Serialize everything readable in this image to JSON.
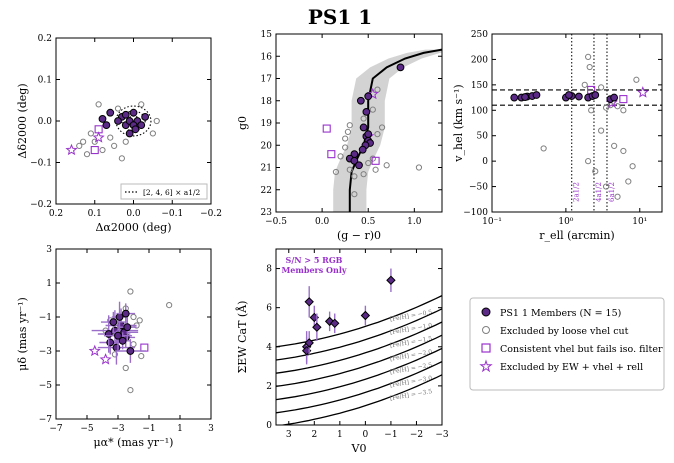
{
  "figure_title": "PS1 1",
  "colors": {
    "member_face": "#5b2a86",
    "member_edge": "#000000",
    "purple": "#9932cc",
    "gray": "#808080",
    "band": "#d3d3d3"
  },
  "chart_data": [
    {
      "id": "spatial",
      "type": "scatter",
      "xlabel": "Δα2000 (deg)",
      "ylabel": "Δδ2000 (deg)",
      "xlim": [
        0.2,
        -0.2
      ],
      "ylim": [
        -0.2,
        0.2
      ],
      "xticks": [
        "0.2",
        "0.1",
        "0.0",
        "−0.1",
        "−0.2"
      ],
      "yticks": [
        "0.2",
        "0.1",
        "0.0",
        "−0.1",
        "−0.2"
      ],
      "xtick_values": [
        0.2,
        0.1,
        0.0,
        -0.1,
        -0.2
      ],
      "ytick_values": [
        0.2,
        0.1,
        0.0,
        -0.1,
        -0.2
      ],
      "legend": "[2, 4, 6] × a1/2",
      "ellipse_multiples": [
        2,
        4,
        6
      ],
      "ellipse_half_axes_deg": [
        0.0075,
        0.006
      ],
      "members": [
        [
          0.03,
          0.01
        ],
        [
          0.02,
          -0.01
        ],
        [
          0.01,
          0.0
        ],
        [
          0.0,
          0.02
        ],
        [
          -0.01,
          0.0
        ],
        [
          0.0,
          -0.01
        ],
        [
          -0.02,
          -0.01
        ],
        [
          0.04,
          0.0
        ],
        [
          0.07,
          -0.01
        ],
        [
          0.06,
          0.02
        ],
        [
          0.01,
          -0.03
        ],
        [
          -0.03,
          0.01
        ],
        [
          0.02,
          0.015
        ],
        [
          0.08,
          0.005
        ],
        [
          -0.005,
          -0.02
        ]
      ],
      "excluded_vhel": [
        [
          0.1,
          -0.05
        ],
        [
          0.08,
          -0.07
        ],
        [
          0.12,
          -0.08
        ],
        [
          0.05,
          -0.06
        ],
        [
          0.02,
          -0.05
        ],
        [
          -0.05,
          -0.03
        ],
        [
          0.11,
          -0.03
        ],
        [
          0.04,
          0.03
        ],
        [
          -0.02,
          0.04
        ],
        [
          0.09,
          0.04
        ],
        [
          0.13,
          -0.05
        ],
        [
          0.14,
          -0.06
        ],
        [
          0.03,
          -0.09
        ],
        [
          -0.06,
          0.0
        ],
        [
          0.06,
          -0.04
        ]
      ],
      "iso_filter_fail": [
        [
          0.09,
          -0.02
        ],
        [
          0.1,
          -0.07
        ]
      ],
      "excluded_ew": [
        [
          0.09,
          -0.04
        ],
        [
          0.16,
          -0.07
        ]
      ]
    },
    {
      "id": "cmd",
      "type": "scatter",
      "xlabel": "(g − r)0",
      "ylabel": "g0",
      "xlim": [
        -0.5,
        1.3
      ],
      "ylim": [
        23,
        15
      ],
      "xticks": [
        "−0.5",
        "0.0",
        "0.5",
        "1.0"
      ],
      "yticks": [
        "15",
        "16",
        "17",
        "18",
        "19",
        "20",
        "21",
        "22",
        "23"
      ],
      "xtick_values": [
        -0.5,
        0.0,
        0.5,
        1.0
      ],
      "ytick_values": [
        15,
        16,
        17,
        18,
        19,
        20,
        21,
        22,
        23
      ],
      "isochrone": [
        [
          0.3,
          23.0
        ],
        [
          0.3,
          22.0
        ],
        [
          0.32,
          21.2
        ],
        [
          0.38,
          20.6
        ],
        [
          0.45,
          20.0
        ],
        [
          0.5,
          19.2
        ],
        [
          0.5,
          18.0
        ],
        [
          0.55,
          17.0
        ],
        [
          0.7,
          16.5
        ],
        [
          0.9,
          16.1
        ],
        [
          1.1,
          15.85
        ],
        [
          1.3,
          15.7
        ]
      ],
      "band_halfwidth": 0.18,
      "members": [
        [
          0.42,
          18.0
        ],
        [
          0.5,
          17.8
        ],
        [
          0.45,
          19.2
        ],
        [
          0.48,
          19.6
        ],
        [
          0.5,
          19.5
        ],
        [
          0.35,
          20.4
        ],
        [
          0.3,
          20.6
        ],
        [
          0.35,
          20.7
        ],
        [
          0.4,
          20.9
        ],
        [
          0.5,
          19.8
        ],
        [
          0.48,
          18.5
        ],
        [
          0.52,
          19.9
        ],
        [
          0.85,
          16.5
        ],
        [
          0.47,
          20.0
        ],
        [
          0.44,
          20.2
        ]
      ],
      "excluded_vhel": [
        [
          0.2,
          20.5
        ],
        [
          0.25,
          19.7
        ],
        [
          0.6,
          19.5
        ],
        [
          0.55,
          20.6
        ],
        [
          0.3,
          21.1
        ],
        [
          0.15,
          21.2
        ],
        [
          0.35,
          21.4
        ],
        [
          0.45,
          21.3
        ],
        [
          0.7,
          20.9
        ],
        [
          0.65,
          19.2
        ],
        [
          0.3,
          19.1
        ],
        [
          0.25,
          20.1
        ],
        [
          0.55,
          18.4
        ],
        [
          0.6,
          17.5
        ],
        [
          0.35,
          22.2
        ],
        [
          1.05,
          21.0
        ],
        [
          0.45,
          18.8
        ],
        [
          0.5,
          20.8
        ],
        [
          0.28,
          19.4
        ],
        [
          0.58,
          21.1
        ]
      ],
      "iso_filter_fail": [
        [
          0.05,
          19.25
        ],
        [
          0.1,
          20.4
        ],
        [
          0.58,
          20.7
        ]
      ],
      "excluded_ew": [
        [
          0.55,
          17.7
        ],
        [
          0.5,
          19.6
        ]
      ]
    },
    {
      "id": "vhel_r",
      "type": "scatter",
      "xscale": "log",
      "xlabel": "r_ell (arcmin)",
      "ylabel": "v_hel (km s⁻¹)",
      "xlim": [
        0.1,
        20
      ],
      "ylim": [
        -100,
        250
      ],
      "xticks": [
        "10⁻¹",
        "10⁰",
        "10¹"
      ],
      "yticks": [
        "250",
        "200",
        "150",
        "100",
        "50",
        "0",
        "−50",
        "−100"
      ],
      "xtick_values": [
        0.1,
        1.0,
        10.0
      ],
      "ytick_values": [
        250,
        200,
        150,
        100,
        50,
        0,
        -50,
        -100
      ],
      "hlines_v": [
        140,
        110
      ],
      "vlines_r": [
        1.2,
        2.4,
        3.6
      ],
      "vline_labels": [
        "2a1/2",
        "4a1/2",
        "6a1/2"
      ],
      "members": [
        [
          0.2,
          125
        ],
        [
          0.25,
          125
        ],
        [
          0.3,
          127
        ],
        [
          0.35,
          128
        ],
        [
          0.4,
          130
        ],
        [
          1.0,
          125
        ],
        [
          1.2,
          128
        ],
        [
          1.5,
          127
        ],
        [
          2.0,
          125
        ],
        [
          2.3,
          128
        ],
        [
          2.5,
          130
        ],
        [
          4.0,
          122
        ],
        [
          4.5,
          125
        ],
        [
          1.1,
          130
        ],
        [
          0.28,
          126
        ]
      ],
      "excluded_vhel": [
        [
          2.0,
          205
        ],
        [
          2.1,
          185
        ],
        [
          1.8,
          150
        ],
        [
          3.0,
          145
        ],
        [
          2.2,
          100
        ],
        [
          3.5,
          105
        ],
        [
          4.0,
          110
        ],
        [
          5.0,
          108
        ],
        [
          6.0,
          100
        ],
        [
          3.0,
          60
        ],
        [
          4.5,
          30
        ],
        [
          6.0,
          20
        ],
        [
          2.0,
          0
        ],
        [
          2.5,
          -20
        ],
        [
          3.5,
          -50
        ],
        [
          7.0,
          -40
        ],
        [
          8.0,
          -10
        ],
        [
          5.0,
          -70
        ],
        [
          0.5,
          25
        ],
        [
          9.0,
          160
        ]
      ],
      "iso_filter_fail": [
        [
          2.2,
          140
        ],
        [
          6.0,
          122
        ]
      ],
      "excluded_ew": [
        [
          4.2,
          115
        ],
        [
          11.0,
          135
        ]
      ]
    },
    {
      "id": "proper_motion",
      "type": "scatter",
      "xlabel": "μα* (mas yr⁻¹)",
      "ylabel": "μδ (mas yr⁻¹)",
      "xlim": [
        -7,
        3
      ],
      "ylim": [
        -7,
        3
      ],
      "xticks": [
        "−7",
        "−5",
        "−3",
        "−1",
        "1",
        "3"
      ],
      "yticks": [
        "3",
        "1",
        "−1",
        "−3",
        "−5",
        "−7"
      ],
      "xtick_values": [
        -7,
        -5,
        -3,
        -1,
        1,
        3
      ],
      "ytick_values": [
        3,
        1,
        -1,
        -3,
        -5,
        -7
      ],
      "members": [
        [
          -3,
          -2
        ],
        [
          -2.8,
          -1.5
        ],
        [
          -2.5,
          -2.2
        ],
        [
          -3.2,
          -1.8
        ],
        [
          -3.5,
          -2.5
        ],
        [
          -2.9,
          -1.0
        ],
        [
          -2.6,
          -1.9
        ],
        [
          -3.1,
          -2.8
        ],
        [
          -2.4,
          -1.6
        ],
        [
          -3.3,
          -1.3
        ],
        [
          -2.7,
          -2.4
        ],
        [
          -2.2,
          -3.0
        ],
        [
          -3.6,
          -2.0
        ],
        [
          -2.5,
          -0.8
        ],
        [
          -3.0,
          -2.1
        ]
      ],
      "member_errors": [
        [
          0.8,
          0.8
        ],
        [
          1.0,
          1.0
        ],
        [
          0.6,
          0.6
        ],
        [
          1.5,
          1.2
        ],
        [
          0.7,
          0.7
        ],
        [
          0.5,
          0.9
        ],
        [
          0.9,
          0.5
        ],
        [
          1.2,
          1.0
        ],
        [
          0.6,
          0.8
        ],
        [
          0.8,
          0.6
        ],
        [
          0.5,
          0.5
        ],
        [
          1.0,
          0.7
        ],
        [
          0.7,
          1.1
        ],
        [
          0.6,
          0.6
        ],
        [
          0.9,
          0.9
        ]
      ],
      "excluded_vhel": [
        [
          -2.0,
          -1.0
        ],
        [
          -2.5,
          -0.5
        ],
        [
          -1.8,
          -1.5
        ],
        [
          -3.5,
          -1.2
        ],
        [
          -2.2,
          0.5
        ],
        [
          -2.7,
          -2.0
        ],
        [
          -3.2,
          -3.2
        ],
        [
          -2.0,
          -2.6
        ],
        [
          -1.5,
          -3.3
        ],
        [
          -2.5,
          -4.0
        ],
        [
          -2.2,
          -5.3
        ],
        [
          -1.6,
          -1.2
        ],
        [
          0.3,
          -0.3
        ],
        [
          -3.8,
          -1.8
        ]
      ],
      "iso_filter_fail": [
        [
          -1.3,
          -2.8
        ]
      ],
      "excluded_ew": [
        [
          -4.5,
          -3.0
        ],
        [
          -3.8,
          -3.5
        ]
      ]
    },
    {
      "id": "ew_v",
      "type": "scatter",
      "xlabel": "V0",
      "ylabel": "ΣEW CaT (Å)",
      "xlim": [
        3.5,
        -3
      ],
      "ylim": [
        0,
        9
      ],
      "xticks": [
        "3",
        "2",
        "1",
        "0",
        "−1",
        "−2",
        "−3"
      ],
      "yticks": [
        "8",
        "6",
        "4",
        "2",
        "0"
      ],
      "xtick_values": [
        3,
        2,
        1,
        0,
        -1,
        -2,
        -3
      ],
      "ytick_values": [
        8,
        6,
        4,
        2,
        0
      ],
      "annotation": [
        "S/N > 5 RGB",
        "Members Only"
      ],
      "feh_labels": [
        "[Fe/H] = −0.5",
        "[Fe/H] = −1.0",
        "[Fe/H] = −1.5",
        "[Fe/H] = −2.0",
        "[Fe/H] = −2.5",
        "[Fe/H] = −3.0",
        "[Fe/H] = −3.5"
      ],
      "feh_values": [
        -0.5,
        -1.0,
        -1.5,
        -2.0,
        -2.5,
        -3.0,
        -3.5
      ],
      "members": [
        [
          2.2,
          6.3
        ],
        [
          2.0,
          5.5
        ],
        [
          1.9,
          5.0
        ],
        [
          1.4,
          5.3
        ],
        [
          1.2,
          5.2
        ],
        [
          0.0,
          5.6
        ],
        [
          -1.0,
          7.4
        ],
        [
          2.3,
          4.0
        ],
        [
          2.3,
          3.8
        ],
        [
          2.2,
          4.2
        ]
      ],
      "member_errors": [
        [
          0,
          0.8
        ],
        [
          0,
          0.6
        ],
        [
          0,
          0.7
        ],
        [
          0,
          0.5
        ],
        [
          0,
          0.5
        ],
        [
          0,
          0.5
        ],
        [
          0,
          0.6
        ],
        [
          0,
          0.8
        ],
        [
          0,
          0.7
        ],
        [
          0,
          0.6
        ]
      ]
    }
  ],
  "legend": {
    "members": "PS1 1 Members (N = 15)",
    "excluded_vhel": "Excluded by loose vhel cut",
    "iso_filter_fail": "Consistent vhel but fails iso. filter",
    "excluded_ew": "Excluded by EW + vhel + rell"
  }
}
